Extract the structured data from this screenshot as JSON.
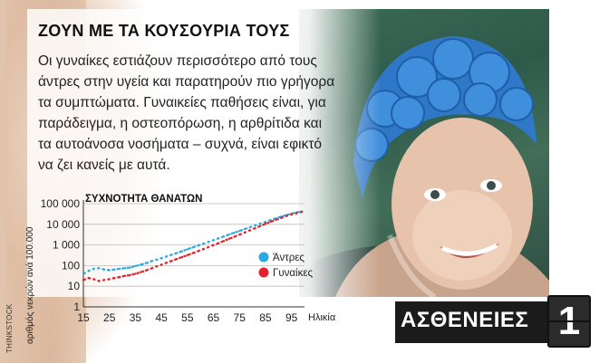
{
  "headline": "ΖΟΥΝ ΜΕ ΤΑ ΚΟΥΣΟΥΡΙΑ ΤΟΥΣ",
  "body_lines": [
    "Οι γυναίκες εστιάζουν περισσότερο από τους",
    "άντρες στην υγεία και παρατηρούν πιο γρήγορα",
    "τα συμπτώματα. Γυναικείες παθήσεις είναι, για",
    "παράδειγμα, η οστεοπόρωση, η αρθρίτιδα και",
    "τα αυτοάνοσα νοσήματα  –  συχνά, είναι εφικτό",
    "να ζει κανείς με αυτά."
  ],
  "credit": "THINKSTOCK",
  "badge": {
    "label": "ΑΣΘΕΝΕΙΕΣ",
    "number": "1"
  },
  "colors": {
    "men": "#29a9e1",
    "women": "#e4222b",
    "badge_bg": "#1b1b1b"
  },
  "photo": {
    "subject": "older-woman-swimming-with-blue-flower-cap"
  },
  "chart_data": {
    "type": "line",
    "title": "ΣΥΧΝΟΤΗΤΑ ΘΑΝΑΤΩΝ",
    "xlabel": "Ηλικία",
    "ylabel": "αριθμός νεκρών ανά 100.000",
    "yscale": "log",
    "xlim": [
      15,
      100
    ],
    "ylim": [
      1,
      100000
    ],
    "x_ticks": [
      15,
      25,
      35,
      45,
      55,
      65,
      75,
      85,
      95
    ],
    "y_ticks": [
      {
        "value": 1,
        "label": "1"
      },
      {
        "value": 10,
        "label": "10"
      },
      {
        "value": 100,
        "label": "100"
      },
      {
        "value": 1000,
        "label": "1 000"
      },
      {
        "value": 10000,
        "label": "10 000"
      },
      {
        "value": 100000,
        "label": "100 000"
      }
    ],
    "grid": "horizontal",
    "legend_position": "right",
    "series": [
      {
        "name": "Άντρες",
        "color": "#29a9e1",
        "x": [
          15,
          17,
          19,
          21,
          23,
          25,
          27,
          29,
          31,
          33,
          35,
          37,
          39,
          41,
          43,
          45,
          47,
          49,
          51,
          53,
          55,
          57,
          59,
          61,
          63,
          65,
          67,
          69,
          71,
          73,
          75,
          77,
          79,
          81,
          83,
          85,
          87,
          89,
          91,
          93,
          95,
          97,
          99
        ],
        "y": [
          40,
          55,
          70,
          75,
          65,
          60,
          65,
          70,
          75,
          80,
          95,
          110,
          130,
          160,
          190,
          230,
          280,
          340,
          410,
          500,
          620,
          760,
          930,
          1140,
          1390,
          1700,
          2100,
          2600,
          3200,
          3900,
          4800,
          5900,
          7200,
          8800,
          10800,
          13000,
          16000,
          19500,
          23500,
          28000,
          33000,
          38000,
          42000
        ]
      },
      {
        "name": "Γυναίκες",
        "color": "#e4222b",
        "x": [
          15,
          17,
          19,
          21,
          23,
          25,
          27,
          29,
          31,
          33,
          35,
          37,
          39,
          41,
          43,
          45,
          47,
          49,
          51,
          53,
          55,
          57,
          59,
          61,
          63,
          65,
          67,
          69,
          71,
          73,
          75,
          77,
          79,
          81,
          83,
          85,
          87,
          89,
          91,
          93,
          95,
          97,
          99
        ],
        "y": [
          20,
          25,
          22,
          18,
          20,
          22,
          25,
          28,
          32,
          35,
          40,
          48,
          58,
          72,
          90,
          110,
          140,
          170,
          210,
          260,
          320,
          400,
          500,
          620,
          780,
          980,
          1230,
          1560,
          1980,
          2500,
          3150,
          4000,
          5100,
          6500,
          8300,
          10500,
          13300,
          16500,
          20500,
          25000,
          30000,
          35000,
          40000
        ]
      }
    ]
  }
}
